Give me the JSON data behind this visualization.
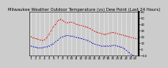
{
  "title": "Milwaukee Weather Outdoor Temperature (vs) Dew Point (Last 24 Hours)",
  "title_fontsize": 3.8,
  "background_color": "#cccccc",
  "plot_bg_color": "#cccccc",
  "grid_color": "#ffffff",
  "temp_color": "#dd0000",
  "dewpoint_color": "#0000cc",
  "ylim": [
    -10,
    60
  ],
  "yticks": [
    -10,
    0,
    10,
    20,
    30,
    40,
    50,
    60
  ],
  "n_points": 48,
  "temp_data": [
    20,
    18,
    17,
    16,
    15,
    14,
    15,
    18,
    24,
    30,
    36,
    40,
    46,
    48,
    46,
    43,
    42,
    43,
    43,
    42,
    40,
    39,
    38,
    37,
    36,
    35,
    33,
    31,
    29,
    27,
    26,
    25,
    24,
    24,
    25,
    26,
    27,
    26,
    25,
    24,
    23,
    22,
    21,
    20,
    19,
    18,
    17,
    16
  ],
  "dew_data": [
    5,
    4,
    3,
    2,
    2,
    2,
    3,
    4,
    5,
    7,
    9,
    12,
    15,
    18,
    20,
    21,
    22,
    21,
    21,
    20,
    19,
    18,
    17,
    16,
    15,
    14,
    12,
    10,
    8,
    7,
    6,
    5,
    5,
    5,
    5,
    5,
    6,
    6,
    5,
    4,
    3,
    1,
    -2,
    -5,
    -8,
    -10,
    -12,
    -13
  ],
  "x_label_step": 2,
  "tick_fontsize": 2.8,
  "ytick_side": "right",
  "line_width": 0.7,
  "marker_size": 1.0,
  "n_xticks": 24
}
